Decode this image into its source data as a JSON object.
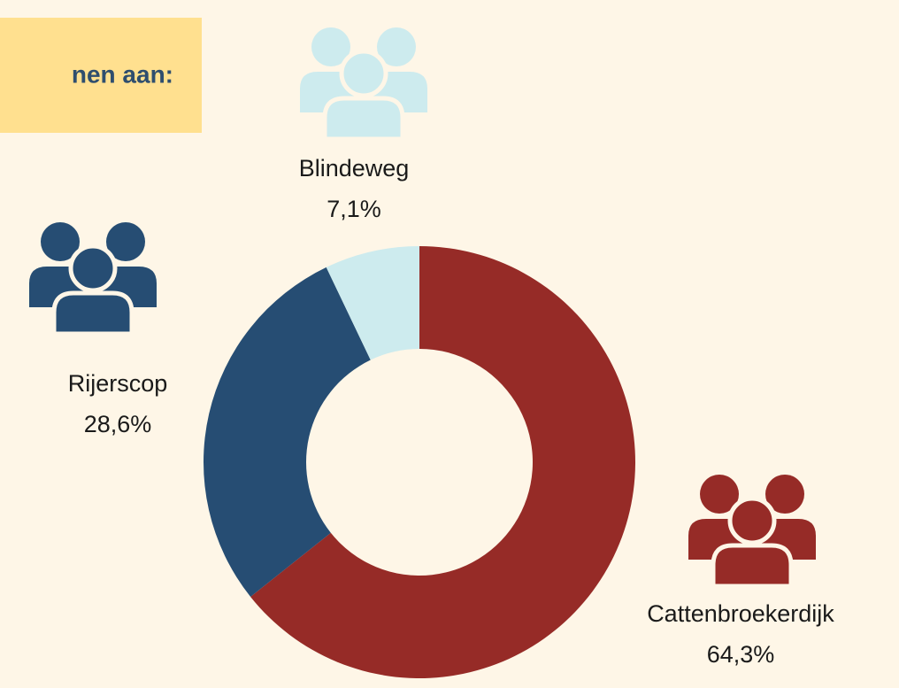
{
  "chart_data": {
    "type": "donut",
    "title": "nen aan:",
    "categories": [
      "Cattenbroekerdijk",
      "Rijerscop",
      "Blindeweg"
    ],
    "values": [
      64.3,
      28.6,
      7.1
    ],
    "value_labels": [
      "64,3%",
      "28,6%",
      "7,1%"
    ],
    "colors": [
      "#962b27",
      "#264d73",
      "#cdebee"
    ]
  }
}
